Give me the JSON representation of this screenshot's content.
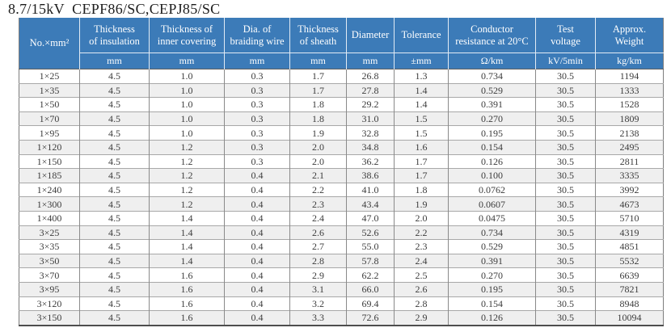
{
  "title": "8.7/15kV  CEPF86/SC,CEPJ85/SC",
  "colors": {
    "header_bg": "#3c7bb8",
    "header_text": "#ffffff",
    "row_alt": "#efefef",
    "body_text": "#3c3c3c"
  },
  "table": {
    "corner_label": "No.×mm²",
    "columns": [
      {
        "label": "Thickness\nof insulation",
        "unit": "mm"
      },
      {
        "label": "Thickness of\ninner covering",
        "unit": "mm"
      },
      {
        "label": "Dia. of\nbraiding wire",
        "unit": "mm"
      },
      {
        "label": "Thickness\nof sheath",
        "unit": "mm"
      },
      {
        "label": "Diameter",
        "unit": "mm"
      },
      {
        "label": "Tolerance",
        "unit": "±mm"
      },
      {
        "label": "Conductor\nresistance at 20°C",
        "unit": "Ω/km"
      },
      {
        "label": "Test\nvoltage",
        "unit": "kV/5min"
      },
      {
        "label": "Approx.\nWeight",
        "unit": "kg/km"
      }
    ],
    "rows": [
      [
        "1×25",
        "4.5",
        "1.0",
        "0.3",
        "1.7",
        "26.8",
        "1.3",
        "0.734",
        "30.5",
        "1194"
      ],
      [
        "1×35",
        "4.5",
        "1.0",
        "0.3",
        "1.7",
        "27.8",
        "1.4",
        "0.529",
        "30.5",
        "1333"
      ],
      [
        "1×50",
        "4.5",
        "1.0",
        "0.3",
        "1.8",
        "29.2",
        "1.4",
        "0.391",
        "30.5",
        "1528"
      ],
      [
        "1×70",
        "4.5",
        "1.0",
        "0.3",
        "1.8",
        "31.0",
        "1.5",
        "0.270",
        "30.5",
        "1809"
      ],
      [
        "1×95",
        "4.5",
        "1.0",
        "0.3",
        "1.9",
        "32.8",
        "1.5",
        "0.195",
        "30.5",
        "2138"
      ],
      [
        "1×120",
        "4.5",
        "1.2",
        "0.3",
        "2.0",
        "34.8",
        "1.6",
        "0.154",
        "30.5",
        "2495"
      ],
      [
        "1×150",
        "4.5",
        "1.2",
        "0.3",
        "2.0",
        "36.2",
        "1.7",
        "0.126",
        "30.5",
        "2811"
      ],
      [
        "1×185",
        "4.5",
        "1.2",
        "0.4",
        "2.1",
        "38.6",
        "1.7",
        "0.100",
        "30.5",
        "3335"
      ],
      [
        "1×240",
        "4.5",
        "1.2",
        "0.4",
        "2.2",
        "41.0",
        "1.8",
        "0.0762",
        "30.5",
        "3992"
      ],
      [
        "1×300",
        "4.5",
        "1.2",
        "0.4",
        "2.3",
        "43.4",
        "1.9",
        "0.0607",
        "30.5",
        "4673"
      ],
      [
        "1×400",
        "4.5",
        "1.4",
        "0.4",
        "2.4",
        "47.0",
        "2.0",
        "0.0475",
        "30.5",
        "5710"
      ],
      [
        "3×25",
        "4.5",
        "1.4",
        "0.4",
        "2.6",
        "52.6",
        "2.2",
        "0.734",
        "30.5",
        "4319"
      ],
      [
        "3×35",
        "4.5",
        "1.4",
        "0.4",
        "2.7",
        "55.0",
        "2.3",
        "0.529",
        "30.5",
        "4851"
      ],
      [
        "3×50",
        "4.5",
        "1.4",
        "0.4",
        "2.8",
        "57.8",
        "2.4",
        "0.391",
        "30.5",
        "5532"
      ],
      [
        "3×70",
        "4.5",
        "1.6",
        "0.4",
        "2.9",
        "62.2",
        "2.5",
        "0.270",
        "30.5",
        "6639"
      ],
      [
        "3×95",
        "4.5",
        "1.6",
        "0.4",
        "3.1",
        "66.0",
        "2.6",
        "0.195",
        "30.5",
        "7821"
      ],
      [
        "3×120",
        "4.5",
        "1.6",
        "0.4",
        "3.2",
        "69.4",
        "2.8",
        "0.154",
        "30.5",
        "8948"
      ],
      [
        "3×150",
        "4.5",
        "1.6",
        "0.4",
        "3.3",
        "72.6",
        "2.9",
        "0.126",
        "30.5",
        "10094"
      ]
    ]
  }
}
